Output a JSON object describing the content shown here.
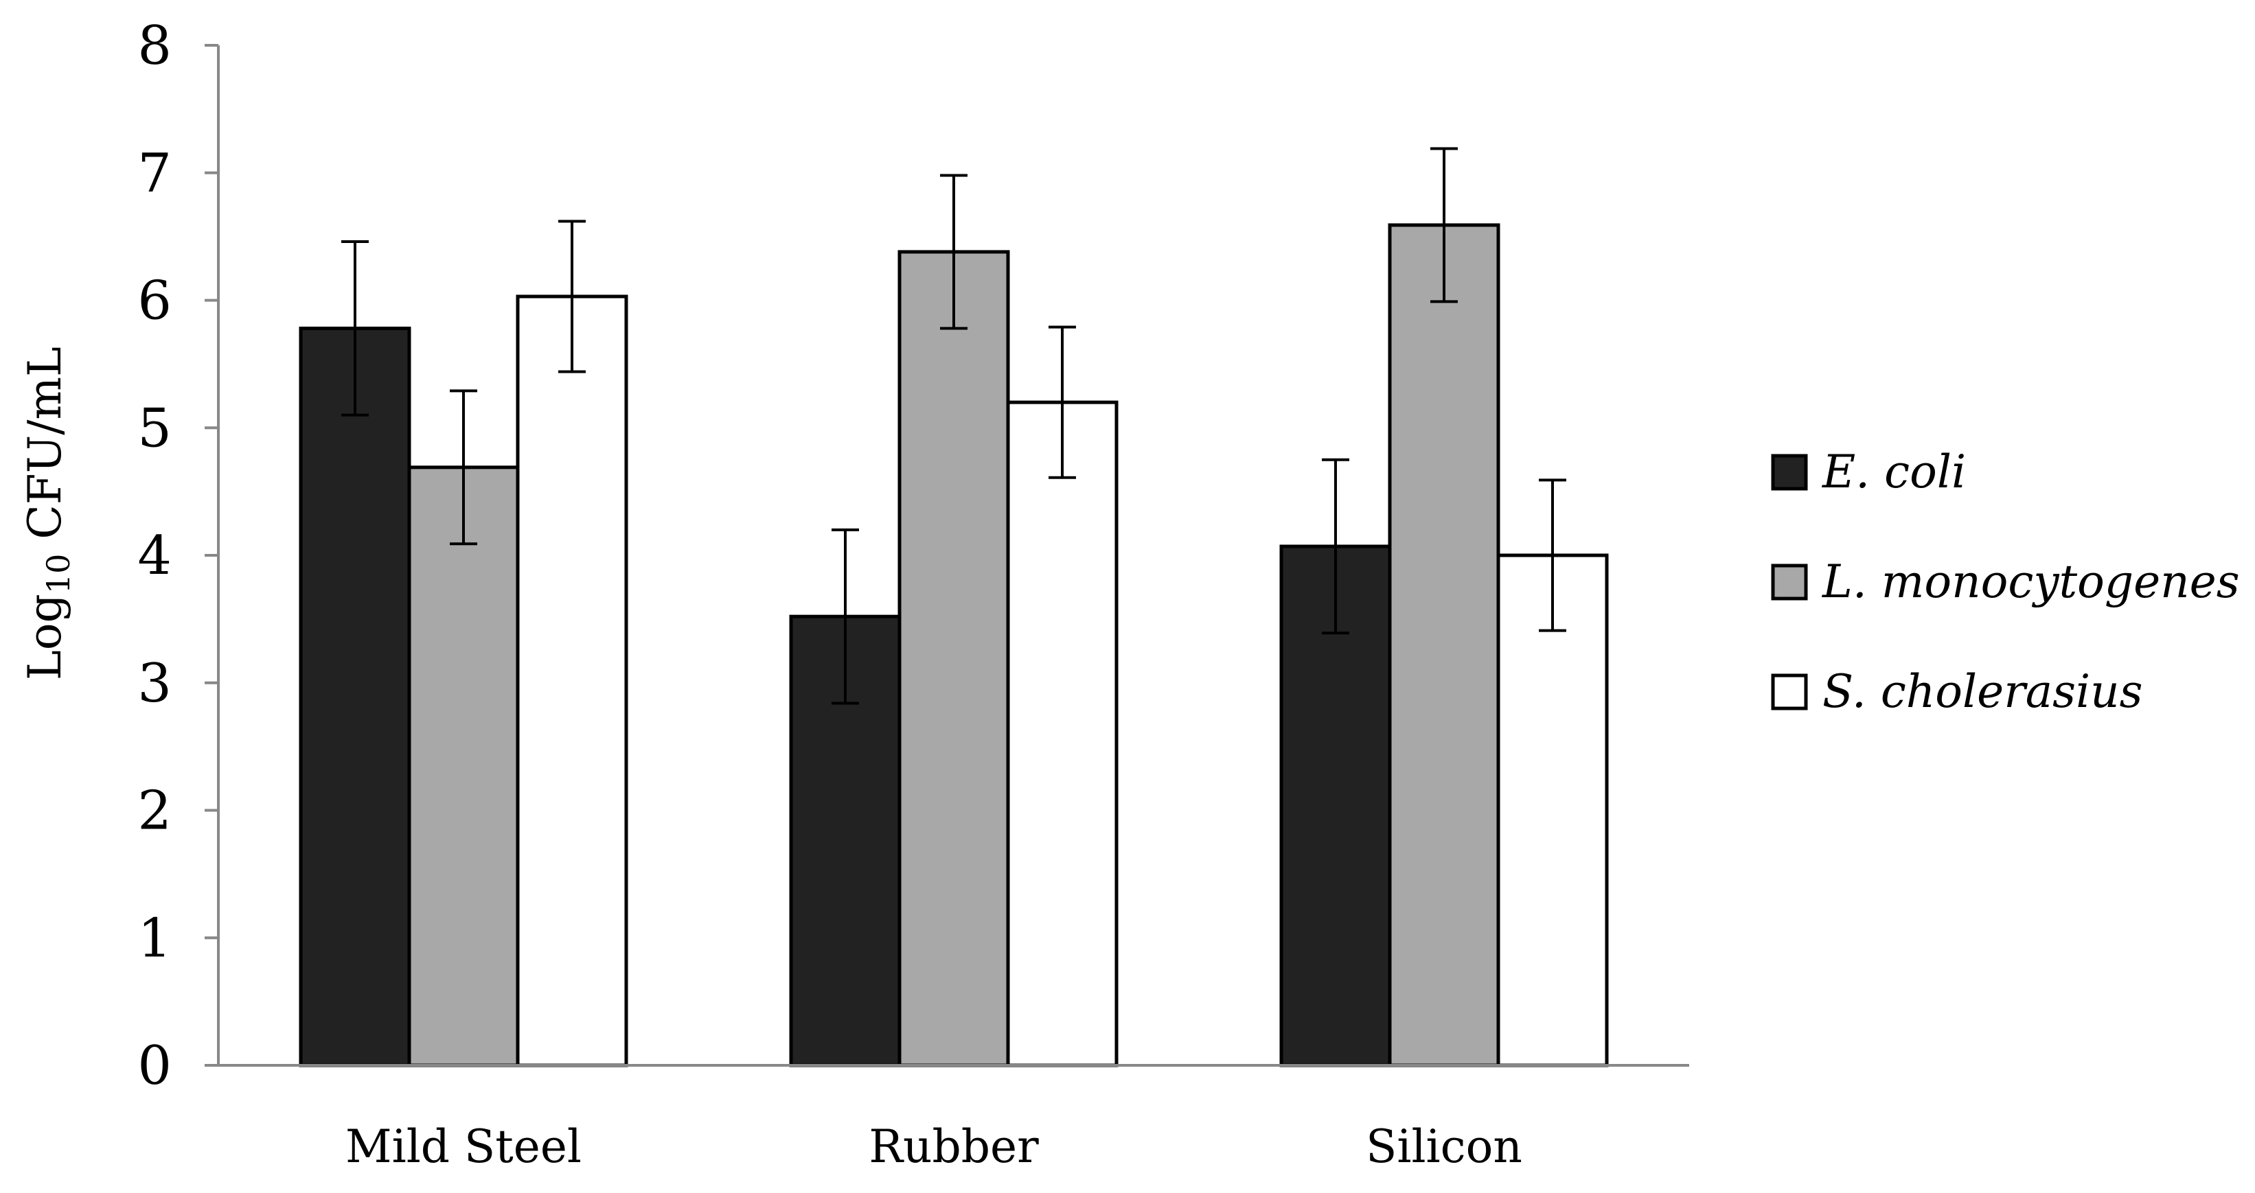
{
  "chart_data": {
    "type": "bar",
    "title": "",
    "xlabel": "",
    "ylabel": {
      "prefix": "Log",
      "subscript": "10",
      "suffix": " CFU/mL"
    },
    "ylim": [
      0,
      8
    ],
    "yticks": [
      0,
      1,
      2,
      3,
      4,
      5,
      6,
      7,
      8
    ],
    "grid": false,
    "legend_position": "right",
    "categories": [
      "Mild Steel",
      "Rubber",
      "Silicon"
    ],
    "series": [
      {
        "name": "E. coli",
        "color": "#222222",
        "values": [
          5.78,
          3.52,
          4.07
        ],
        "errors": [
          0.68,
          0.68,
          0.68
        ]
      },
      {
        "name": "L. monocytogenes",
        "color": "#a8a8a8",
        "values": [
          4.69,
          6.38,
          6.59
        ],
        "errors": [
          0.6,
          0.6,
          0.6
        ]
      },
      {
        "name": "S. cholerasius",
        "color": "#ffffff",
        "values": [
          6.03,
          5.2,
          4.0
        ],
        "errors": [
          0.59,
          0.59,
          0.59
        ]
      }
    ]
  }
}
